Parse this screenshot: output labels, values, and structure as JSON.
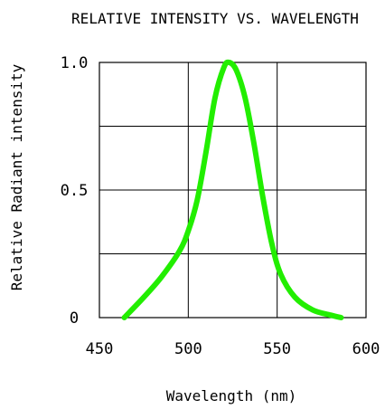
{
  "chart_data": {
    "type": "line",
    "title": "RELATIVE INTENSITY VS. WAVELENGTH",
    "xlabel": "Wavelength (nm)",
    "ylabel": "Relative Radiant intensity",
    "xlim": [
      450,
      600
    ],
    "ylim": [
      0,
      1.0
    ],
    "x_ticks": [
      {
        "value": 450,
        "label": "450"
      },
      {
        "value": 500,
        "label": "500"
      },
      {
        "value": 550,
        "label": "550"
      },
      {
        "value": 600,
        "label": "600"
      }
    ],
    "y_ticks": [
      {
        "value": 0,
        "label": "0"
      },
      {
        "value": 0.5,
        "label": "0.5"
      },
      {
        "value": 1.0,
        "label": "1.0"
      }
    ],
    "x_grid": [
      450,
      500,
      550,
      600
    ],
    "y_grid": [
      0,
      0.25,
      0.5,
      0.75,
      1.0
    ],
    "grid": true,
    "series": [
      {
        "color": "#22ee00",
        "x": [
          464,
          475,
          485,
          495,
          500,
          505,
          510,
          515,
          520,
          523,
          527,
          532,
          537,
          542,
          547,
          552,
          560,
          570,
          580,
          586
        ],
        "y": [
          0.0,
          0.08,
          0.16,
          0.26,
          0.34,
          0.46,
          0.65,
          0.86,
          0.98,
          1.0,
          0.97,
          0.86,
          0.68,
          0.47,
          0.29,
          0.17,
          0.08,
          0.03,
          0.01,
          0.0
        ]
      }
    ]
  }
}
